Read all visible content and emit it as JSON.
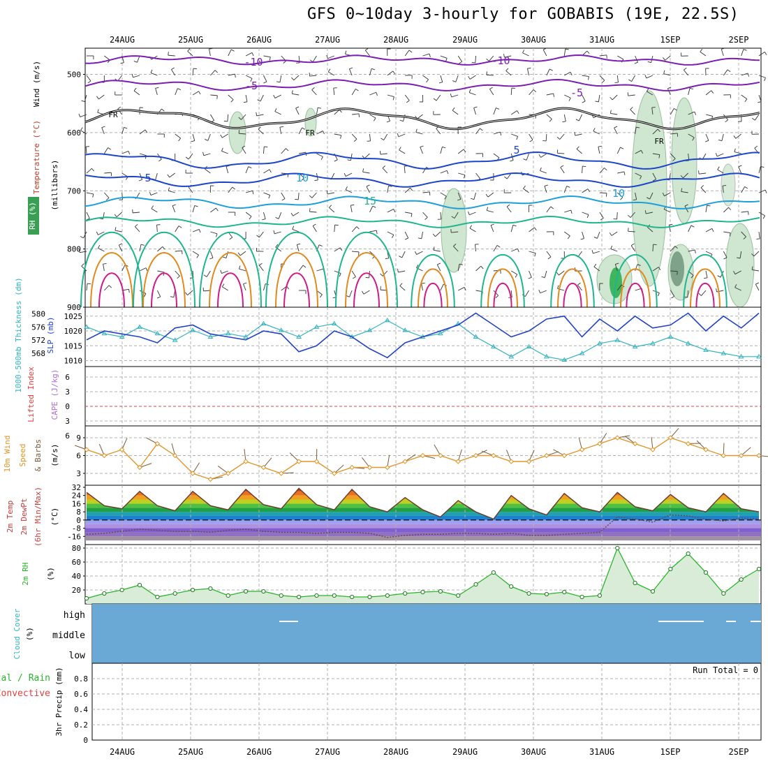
{
  "title": "GFS 0~10day 3-hourly for GOBABIS (19E, 22.5S)",
  "dates": [
    "24AUG",
    "25AUG",
    "26AUG",
    "27AUG",
    "28AUG",
    "29AUG",
    "30AUG",
    "31AUG",
    "1SEP",
    "2SEP"
  ],
  "colors": {
    "temperature_warm": "#e08a1e",
    "temperature_hot": "#d01b8a",
    "temperature_mild": "#1fb58f",
    "temperature_cool": "#1e9fd8",
    "temperature_cold": "#1c45c8",
    "temperature_freezing": "#7a1fb0",
    "rh_shade": "#cfe6d0",
    "slp": "#2243c4",
    "thickness": "#34b3c0",
    "lifted_index_zero": "#e04040",
    "wind_speed": "#e0962a",
    "wind_barb": "#7a5a3a",
    "rh_2m": "#2ab42a",
    "cloud_cover": "#6aa9d6"
  },
  "panels": {
    "upper_air": {
      "ylabel_temperature": "Temperature (°C)",
      "ylabel_wind": "Wind (m/s)",
      "ylabel_rh": "RH (%)",
      "ylabel_units": "(millibars)",
      "yticks": [
        "500",
        "600",
        "700",
        "800",
        "900"
      ],
      "contour_labels": [
        "-10",
        "-10",
        "-5",
        "-5",
        "5",
        "5",
        "10",
        "10",
        "15",
        "FR",
        "FR",
        "FR"
      ]
    },
    "slp_thickness": {
      "ylabel_thickness": "1000-500mb Thickness (dm)",
      "ylabel_slp": "SLP (mb)",
      "yticks_left": [
        "580",
        "576",
        "572",
        "568"
      ],
      "yticks_right": [
        "1025",
        "1020",
        "1015",
        "1010"
      ]
    },
    "lifted_index": {
      "ylabel_li": "Lifted Index",
      "ylabel_cape": "CAPE (J/kg)",
      "yticks": [
        "6",
        "3",
        "0",
        "3",
        "6"
      ]
    },
    "wind10m": {
      "ylabel_1": "10m Wind",
      "ylabel_2": "Speed",
      "ylabel_3": "& Barbs",
      "ylabel_units": "(m/s)",
      "yticks": [
        "9",
        "6",
        "3"
      ]
    },
    "temp2m": {
      "ylabel_1": "2m Temp",
      "ylabel_2": "2m DewPt",
      "ylabel_3": "(6hr Min/Max)",
      "ylabel_units": "(°C)",
      "yticks": [
        "32",
        "24",
        "16",
        "8",
        "0",
        "-8",
        "-16"
      ]
    },
    "rh2m": {
      "ylabel": "2m RH",
      "ylabel_units": "(%)",
      "yticks": [
        "80",
        "60",
        "40",
        "20"
      ]
    },
    "cloud": {
      "ylabel": "Cloud Cover",
      "ylabel_units": "(%)",
      "levels": [
        "high",
        "middle",
        "low"
      ]
    },
    "precip": {
      "ylabel_1": "Total / Rain",
      "ylabel_2": "Convective",
      "ylabel_3": "3hr Precip (mm)",
      "yticks": [
        "0.8",
        "0.6",
        "0.4",
        "0.2",
        "0"
      ],
      "run_total": "Run Total = 0"
    }
  },
  "chart_data": [
    {
      "type": "line",
      "name": "SLP (mb)",
      "x": [
        "23AUG18",
        "24AUG00",
        "24AUG06",
        "24AUG12",
        "24AUG18",
        "25AUG00",
        "25AUG06",
        "25AUG12",
        "25AUG18",
        "26AUG00",
        "26AUG06",
        "26AUG12",
        "26AUG18",
        "27AUG00",
        "27AUG06",
        "27AUG12",
        "27AUG18",
        "28AUG00",
        "28AUG06",
        "28AUG12",
        "28AUG18",
        "29AUG00",
        "29AUG06",
        "29AUG12",
        "29AUG18",
        "30AUG00",
        "30AUG06",
        "30AUG12",
        "30AUG18",
        "31AUG00",
        "31AUG06",
        "31AUG12",
        "31AUG18",
        "1SEP00",
        "1SEP06",
        "1SEP12",
        "1SEP18",
        "2SEP00",
        "2SEP06"
      ],
      "values": [
        1017,
        1020,
        1019,
        1018,
        1016,
        1021,
        1022,
        1019,
        1018,
        1017,
        1020,
        1019,
        1013,
        1015,
        1020,
        1018,
        1014,
        1011,
        1016,
        1018,
        1020,
        1022,
        1026,
        1022,
        1018,
        1020,
        1024,
        1025,
        1018,
        1024,
        1020,
        1025,
        1021,
        1022,
        1026,
        1020,
        1025,
        1021,
        1026
      ],
      "ylim": [
        1008,
        1028
      ]
    },
    {
      "type": "line",
      "name": "1000-500mb Thickness (dm)",
      "x": [
        "23AUG18",
        "24AUG00",
        "24AUG06",
        "24AUG12",
        "24AUG18",
        "25AUG00",
        "25AUG06",
        "25AUG12",
        "25AUG18",
        "26AUG00",
        "26AUG06",
        "26AUG12",
        "26AUG18",
        "27AUG00",
        "27AUG06",
        "27AUG12",
        "27AUG18",
        "28AUG00",
        "28AUG06",
        "28AUG12",
        "28AUG18",
        "29AUG00",
        "29AUG06",
        "29AUG12",
        "29AUG18",
        "30AUG00",
        "30AUG06",
        "30AUG12",
        "30AUG18",
        "31AUG00",
        "31AUG06",
        "31AUG12",
        "31AUG18",
        "1SEP00",
        "1SEP06",
        "1SEP12",
        "1SEP18",
        "2SEP00",
        "2SEP06"
      ],
      "values": [
        576,
        574,
        573,
        576,
        574,
        572,
        575,
        573,
        574,
        573,
        577,
        575,
        573,
        576,
        577,
        573,
        575,
        578,
        575,
        573,
        574,
        577,
        573,
        570,
        567,
        570,
        567,
        566,
        568,
        571,
        572,
        570,
        571,
        573,
        571,
        569,
        568,
        567,
        567
      ],
      "ylim": [
        564,
        582
      ]
    },
    {
      "type": "line",
      "name": "10m Wind Speed (m/s)",
      "x": [
        "23AUG18",
        "24AUG00",
        "24AUG06",
        "24AUG12",
        "24AUG18",
        "25AUG00",
        "25AUG06",
        "25AUG12",
        "25AUG18",
        "26AUG00",
        "26AUG06",
        "26AUG12",
        "26AUG18",
        "27AUG00",
        "27AUG06",
        "27AUG12",
        "27AUG18",
        "28AUG00",
        "28AUG06",
        "28AUG12",
        "28AUG18",
        "29AUG00",
        "29AUG06",
        "29AUG12",
        "29AUG18",
        "30AUG00",
        "30AUG06",
        "30AUG12",
        "30AUG18",
        "31AUG00",
        "31AUG06",
        "31AUG12",
        "31AUG18",
        "1SEP00",
        "1SEP06",
        "1SEP12",
        "1SEP18",
        "2SEP00",
        "2SEP06"
      ],
      "values": [
        7,
        6,
        7,
        4,
        8,
        6,
        3,
        2,
        3,
        5,
        4,
        3,
        5,
        5,
        3,
        4,
        4,
        4,
        5,
        6,
        6,
        5,
        6,
        6,
        5,
        5,
        6,
        6,
        7,
        8,
        9,
        8,
        7,
        9,
        8,
        7,
        6,
        6,
        6
      ],
      "ylim": [
        1,
        11
      ]
    },
    {
      "type": "line",
      "name": "2m Temp (°C)",
      "x": [
        "23AUG18",
        "24AUG00",
        "24AUG06",
        "24AUG12",
        "24AUG18",
        "25AUG00",
        "25AUG06",
        "25AUG12",
        "25AUG18",
        "26AUG00",
        "26AUG06",
        "26AUG12",
        "26AUG18",
        "27AUG00",
        "27AUG06",
        "27AUG12",
        "27AUG18",
        "28AUG00",
        "28AUG06",
        "28AUG12",
        "28AUG18",
        "29AUG00",
        "29AUG06",
        "29AUG12",
        "29AUG18",
        "30AUG00",
        "30AUG06",
        "30AUG12",
        "30AUG18",
        "31AUG00",
        "31AUG06",
        "31AUG12",
        "31AUG18",
        "1SEP00",
        "1SEP06",
        "1SEP12",
        "1SEP18",
        "2SEP00",
        "2SEP06"
      ],
      "values": [
        27,
        14,
        11,
        28,
        14,
        9,
        28,
        14,
        10,
        30,
        15,
        11,
        31,
        15,
        10,
        30,
        13,
        8,
        22,
        10,
        3,
        19,
        8,
        1,
        24,
        11,
        5,
        26,
        12,
        8,
        27,
        13,
        9,
        25,
        12,
        8,
        26,
        11,
        8
      ],
      "ylim": [
        -24,
        34
      ]
    },
    {
      "type": "line",
      "name": "2m DewPt (°C)",
      "x": [
        "23AUG18",
        "24AUG00",
        "24AUG06",
        "24AUG12",
        "24AUG18",
        "25AUG00",
        "25AUG06",
        "25AUG12",
        "25AUG18",
        "26AUG00",
        "26AUG06",
        "26AUG12",
        "26AUG18",
        "27AUG00",
        "27AUG06",
        "27AUG12",
        "27AUG18",
        "28AUG00",
        "28AUG06",
        "28AUG12",
        "28AUG18",
        "29AUG00",
        "29AUG06",
        "29AUG12",
        "29AUG18",
        "30AUG00",
        "30AUG06",
        "30AUG12",
        "30AUG18",
        "31AUG00",
        "31AUG06",
        "31AUG12",
        "31AUG18",
        "1SEP00",
        "1SEP06",
        "1SEP12",
        "1SEP18",
        "2SEP00",
        "2SEP06"
      ],
      "values": [
        -14,
        -13,
        -11,
        -9,
        -10,
        -11,
        -11,
        -12,
        -10,
        -9,
        -11,
        -12,
        -12,
        -13,
        -12,
        -12,
        -13,
        -17,
        -15,
        -14,
        -14,
        -13,
        -13,
        -14,
        -13,
        -15,
        -15,
        -14,
        -13,
        -12,
        3,
        1,
        -2,
        5,
        4,
        1,
        -1,
        2,
        1
      ],
      "ylim": [
        -24,
        34
      ]
    },
    {
      "type": "area",
      "name": "2m RH (%)",
      "x": [
        "23AUG18",
        "24AUG00",
        "24AUG06",
        "24AUG12",
        "24AUG18",
        "25AUG00",
        "25AUG06",
        "25AUG12",
        "25AUG18",
        "26AUG00",
        "26AUG06",
        "26AUG12",
        "26AUG18",
        "27AUG00",
        "27AUG06",
        "27AUG12",
        "27AUG18",
        "28AUG00",
        "28AUG06",
        "28AUG12",
        "28AUG18",
        "29AUG00",
        "29AUG06",
        "29AUG12",
        "29AUG18",
        "30AUG00",
        "30AUG06",
        "30AUG12",
        "30AUG18",
        "31AUG00",
        "31AUG06",
        "31AUG12",
        "31AUG18",
        "1SEP00",
        "1SEP06",
        "1SEP12",
        "1SEP18",
        "2SEP00",
        "2SEP06"
      ],
      "values": [
        8,
        15,
        20,
        27,
        10,
        15,
        20,
        22,
        12,
        18,
        18,
        12,
        10,
        12,
        12,
        10,
        10,
        12,
        15,
        17,
        18,
        12,
        28,
        45,
        25,
        15,
        14,
        17,
        10,
        12,
        80,
        30,
        18,
        50,
        72,
        45,
        15,
        35,
        50
      ],
      "ylim": [
        0,
        85
      ]
    },
    {
      "type": "bar",
      "name": "3hr Precip (mm)",
      "categories": [
        "24AUG",
        "25AUG",
        "26AUG",
        "27AUG",
        "28AUG",
        "29AUG",
        "30AUG",
        "31AUG",
        "1SEP",
        "2SEP"
      ],
      "values": [
        0,
        0,
        0,
        0,
        0,
        0,
        0,
        0,
        0,
        0
      ],
      "ylim": [
        0,
        1
      ]
    }
  ]
}
